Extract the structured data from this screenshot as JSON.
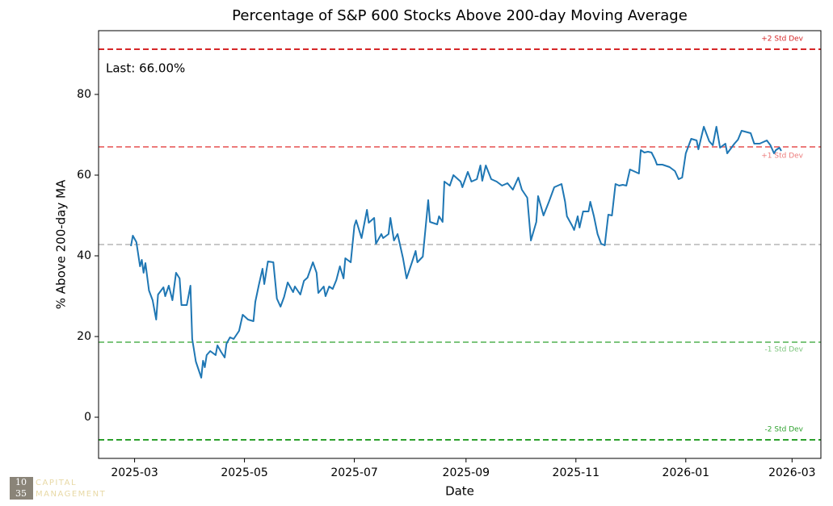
{
  "chart_data": {
    "type": "line",
    "title": "Percentage of S&P 600 Stocks Above 200-day Moving Average",
    "xlabel": "Date",
    "ylabel": "% Above 200-day MA",
    "annotation": "Last: 66.00%",
    "color": "#1f77b4",
    "x": [
      "2025-02-27",
      "2025-02-28",
      "2025-03-02",
      "2025-03-04",
      "2025-03-05",
      "2025-03-06",
      "2025-03-07",
      "2025-03-09",
      "2025-03-11",
      "2025-03-13",
      "2025-03-14",
      "2025-03-17",
      "2025-03-18",
      "2025-03-20",
      "2025-03-22",
      "2025-03-24",
      "2025-03-26",
      "2025-03-27",
      "2025-03-30",
      "2025-04-01",
      "2025-04-02",
      "2025-04-04",
      "2025-04-07",
      "2025-04-08",
      "2025-04-09",
      "2025-04-10",
      "2025-04-12",
      "2025-04-15",
      "2025-04-16",
      "2025-04-18",
      "2025-04-20",
      "2025-04-21",
      "2025-04-23",
      "2025-04-25",
      "2025-04-28",
      "2025-04-30",
      "2025-05-03",
      "2025-05-06",
      "2025-05-07",
      "2025-05-09",
      "2025-05-11",
      "2025-05-12",
      "2025-05-14",
      "2025-05-17",
      "2025-05-19",
      "2025-05-21",
      "2025-05-23",
      "2025-05-25",
      "2025-05-28",
      "2025-05-29",
      "2025-06-01",
      "2025-06-03",
      "2025-06-05",
      "2025-06-08",
      "2025-06-10",
      "2025-06-11",
      "2025-06-14",
      "2025-06-15",
      "2025-06-17",
      "2025-06-19",
      "2025-06-21",
      "2025-06-23",
      "2025-06-25",
      "2025-06-26",
      "2025-06-29",
      "2025-07-01",
      "2025-07-02",
      "2025-07-05",
      "2025-07-08",
      "2025-07-09",
      "2025-07-12",
      "2025-07-13",
      "2025-07-16",
      "2025-07-17",
      "2025-07-20",
      "2025-07-21",
      "2025-07-23",
      "2025-07-25",
      "2025-07-28",
      "2025-07-30",
      "2025-08-02",
      "2025-08-04",
      "2025-08-05",
      "2025-08-08",
      "2025-08-11",
      "2025-08-12",
      "2025-08-16",
      "2025-08-17",
      "2025-08-19",
      "2025-08-20",
      "2025-08-23",
      "2025-08-25",
      "2025-08-29",
      "2025-08-30",
      "2025-09-02",
      "2025-09-04",
      "2025-09-07",
      "2025-09-09",
      "2025-09-10",
      "2025-09-12",
      "2025-09-15",
      "2025-09-18",
      "2025-09-21",
      "2025-09-24",
      "2025-09-27",
      "2025-09-30",
      "2025-10-02",
      "2025-10-05",
      "2025-10-07",
      "2025-10-10",
      "2025-10-11",
      "2025-10-14",
      "2025-10-17",
      "2025-10-20",
      "2025-10-24",
      "2025-10-26",
      "2025-10-27",
      "2025-10-30",
      "2025-10-31",
      "2025-11-02",
      "2025-11-03",
      "2025-11-05",
      "2025-11-08",
      "2025-11-09",
      "2025-11-11",
      "2025-11-13",
      "2025-11-15",
      "2025-11-17",
      "2025-11-19",
      "2025-11-21",
      "2025-11-23",
      "2025-11-25",
      "2025-11-27",
      "2025-11-29",
      "2025-12-01",
      "2025-12-04",
      "2025-12-06",
      "2025-12-07",
      "2025-12-09",
      "2025-12-11",
      "2025-12-13",
      "2025-12-15",
      "2025-12-16",
      "2025-12-19",
      "2025-12-23",
      "2025-12-26",
      "2025-12-28",
      "2025-12-30",
      "2026-01-01",
      "2026-01-04",
      "2026-01-07",
      "2026-01-08",
      "2026-01-11",
      "2026-01-14",
      "2026-01-16",
      "2026-01-18",
      "2026-01-20",
      "2026-01-23",
      "2026-01-24",
      "2026-01-28",
      "2026-01-30",
      "2026-02-01",
      "2026-02-06",
      "2026-02-08",
      "2026-02-11",
      "2026-02-15",
      "2026-02-17",
      "2026-02-19",
      "2026-02-20",
      "2026-02-22",
      "2026-02-23"
    ],
    "values": [
      42.4,
      45,
      43.4,
      37.4,
      39,
      35.8,
      38.2,
      31.4,
      29,
      24.2,
      30.4,
      32.2,
      30,
      32.6,
      29,
      35.8,
      34.4,
      27.8,
      27.8,
      32.6,
      19.4,
      13.8,
      9.8,
      14,
      12.4,
      15.4,
      16.4,
      15.4,
      17.8,
      16.2,
      14.8,
      18.2,
      19.8,
      19.4,
      21.4,
      25.4,
      24.2,
      23.8,
      28.6,
      32.8,
      36.8,
      33,
      38.6,
      38.4,
      29.4,
      27.4,
      29.8,
      33.4,
      31,
      32.4,
      30.4,
      33.8,
      34.6,
      38.4,
      35.8,
      30.8,
      32.4,
      30,
      32.4,
      31.8,
      34,
      37.4,
      34.4,
      39.4,
      38.4,
      47.4,
      48.8,
      44.4,
      51.4,
      48.2,
      49.4,
      43,
      45.4,
      44.4,
      45.4,
      49.4,
      43.8,
      45.4,
      39.4,
      34.4,
      38.4,
      41.2,
      38.4,
      39.8,
      53.8,
      48.4,
      47.8,
      49.8,
      48.4,
      58.4,
      57.4,
      60,
      58.4,
      57,
      60.8,
      58.4,
      59,
      62.4,
      58.6,
      62.4,
      59,
      58.4,
      57.4,
      58,
      56.4,
      59.4,
      56.4,
      54.4,
      43.8,
      48.4,
      54.8,
      50,
      53.4,
      57,
      57.8,
      53.4,
      49.8,
      47.4,
      46.4,
      49.8,
      47,
      51,
      51,
      53.4,
      49.8,
      45.4,
      43,
      42.6,
      50.2,
      50,
      57.8,
      57.4,
      57.6,
      57.4,
      61.4,
      60.8,
      60.4,
      66.2,
      65.6,
      65.8,
      65.6,
      63.8,
      62.6,
      62.6,
      62,
      61,
      59,
      59.4,
      65.4,
      69,
      68.6,
      66.4,
      72,
      68.4,
      67.4,
      72,
      66.8,
      67.8,
      65.4,
      67.8,
      68.8,
      71,
      70.4,
      67.8,
      67.8,
      68.6,
      67.4,
      65.4,
      66.2,
      66.8,
      66
    ],
    "reference_lines": [
      {
        "value": 91.2,
        "label": "+2 Std Dev",
        "color": "#d62728"
      },
      {
        "value": 67,
        "label": "+1 Std Dev",
        "color": "#ec7b7b"
      },
      {
        "value": 42.8,
        "color": "#c8c8c8"
      },
      {
        "value": 18.6,
        "label": "-1 Std Dev",
        "color": "#7cc47c"
      },
      {
        "value": -5.6,
        "label": "-2 Std Dev",
        "color": "#2ca02c"
      }
    ],
    "xlim": [
      "2025-02-09",
      "2026-03-17"
    ],
    "xticks": [
      "2025-03",
      "2025-05",
      "2025-07",
      "2025-09",
      "2025-11",
      "2026-01",
      "2026-03"
    ],
    "ylim": [
      -10.2,
      95.8
    ],
    "yticks": [
      0,
      20,
      40,
      60,
      80
    ]
  },
  "logo": {
    "mark": [
      "10",
      "35"
    ],
    "text": [
      "CAPITAL",
      "MANAGEMENT"
    ]
  }
}
